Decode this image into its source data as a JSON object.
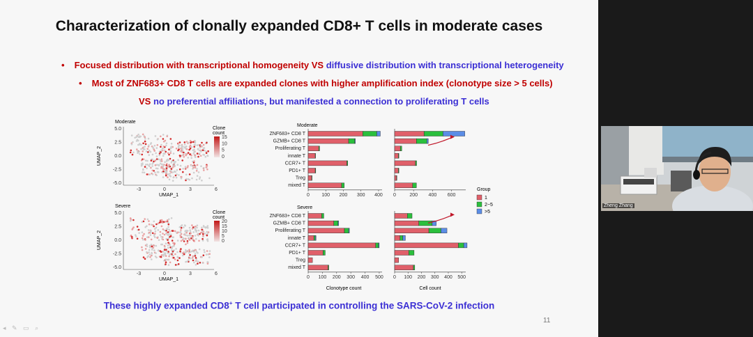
{
  "slide": {
    "title": "Characterization of clonally expanded CD8+ T cells in moderate cases",
    "bullet1_red": "Focused distribution with transcriptional homogeneity VS",
    "bullet1_blue": "diffusive distribution with  transcriptional heterogeneity",
    "bullet2": "Most of ZNF683+ CD8 T cells are  expanded clones with higher amplification index (clonotype size > 5 cells)",
    "line3_vs": "VS",
    "line3_blue": "no preferential affiliations, but manifested a connection to proliferating T cells",
    "footer_pre": "These highly expanded CD8",
    "footer_sup": "+",
    "footer_post": " T cell participated in controlling the SARS-CoV-2 infection",
    "page_number": "11"
  },
  "webcam": {
    "name_label": "Zheng Zhang"
  },
  "umap": {
    "xlabel": "UMAP_1",
    "ylabel": "UMAP_2",
    "xticks": [
      "-3",
      "0",
      "3",
      "6"
    ],
    "yticks": [
      "5.0",
      "2.5",
      "0.0",
      "-2.5",
      "-5.0"
    ],
    "legend_title_1": "Clone",
    "legend_title_2": "count",
    "panels": [
      {
        "label": "Moderate",
        "legend_ticks": [
          "15",
          "10",
          "5",
          "0"
        ]
      },
      {
        "label": "Severe",
        "legend_ticks": [
          "20",
          "15",
          "10",
          "5",
          "0"
        ]
      }
    ]
  },
  "chart_data": {
    "type": "bar",
    "stacked": true,
    "orientation": "horizontal",
    "categories": [
      "ZNF683+ CD8 T",
      "GZMB+ CD8 T",
      "Proliferating T",
      "innate T",
      "CCR7+ T",
      "PD1+ T",
      "Treg",
      "mixed T"
    ],
    "legend_title": "Group",
    "groups": [
      "1",
      "2~5",
      ">5"
    ],
    "colors": [
      "#e0606a",
      "#2bbf3d",
      "#5b8de6"
    ],
    "xlabel_left": "Clonotype count",
    "xlabel_right": "Cell count",
    "panels": [
      {
        "label": "Moderate",
        "clonotype": {
          "xlim": [
            0,
            420
          ],
          "ticks": [
            0,
            100,
            200,
            300,
            400
          ],
          "series": [
            {
              "name": "1",
              "values": [
                310,
                230,
                60,
                40,
                220,
                40,
                20,
                190
              ]
            },
            {
              "name": "2~5",
              "values": [
                80,
                35,
                5,
                2,
                5,
                3,
                2,
                15
              ]
            },
            {
              "name": ">5",
              "values": [
                20,
                3,
                0,
                0,
                0,
                0,
                0,
                0
              ]
            }
          ]
        },
        "cell": {
          "xlim": [
            0,
            750
          ],
          "ticks": [
            0,
            200,
            400,
            600
          ],
          "series": [
            {
              "name": "1",
              "values": [
                310,
                230,
                60,
                40,
                220,
                40,
                20,
                190
              ]
            },
            {
              "name": "2~5",
              "values": [
                200,
                110,
                15,
                5,
                12,
                5,
                4,
                40
              ]
            },
            {
              "name": ">5",
              "values": [
                230,
                15,
                0,
                0,
                0,
                0,
                0,
                0
              ]
            }
          ]
        }
      },
      {
        "label": "Severe",
        "clonotype": {
          "xlim": [
            0,
            520
          ],
          "ticks": [
            0,
            100,
            200,
            300,
            400,
            500
          ],
          "series": [
            {
              "name": "1",
              "values": [
                95,
                180,
                255,
                40,
                475,
                105,
                30,
                140
              ]
            },
            {
              "name": "2~5",
              "values": [
                15,
                30,
                30,
                10,
                20,
                15,
                0,
                5
              ]
            },
            {
              "name": ">5",
              "values": [
                0,
                5,
                5,
                5,
                5,
                0,
                0,
                0
              ]
            }
          ]
        },
        "cell": {
          "xlim": [
            0,
            530
          ],
          "ticks": [
            0,
            100,
            200,
            300,
            400,
            500
          ],
          "series": [
            {
              "name": "1",
              "values": [
                95,
                180,
                255,
                40,
                475,
                105,
                30,
                140
              ]
            },
            {
              "name": "2~5",
              "values": [
                35,
                100,
                90,
                20,
                40,
                40,
                0,
                10
              ]
            },
            {
              "name": ">5",
              "values": [
                0,
                30,
                45,
                20,
                25,
                0,
                0,
                0
              ]
            }
          ]
        }
      }
    ]
  }
}
